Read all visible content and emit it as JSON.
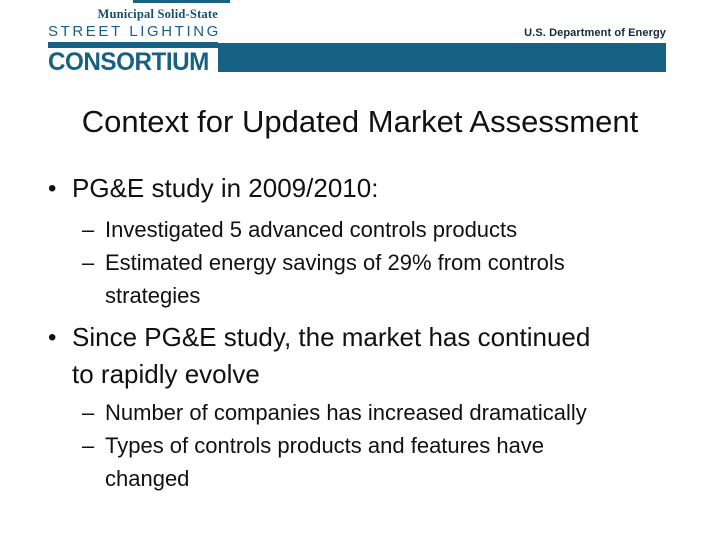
{
  "logo": {
    "line1": "Municipal Solid-State",
    "line2": "STREET LIGHTING",
    "line3": "CONSORTIUM"
  },
  "header": {
    "agency": "U.S. Department of Energy"
  },
  "slide": {
    "title": "Context for Updated Market Assessment",
    "bullets": [
      {
        "level": 1,
        "text": "PG&E study in 2009/2010:"
      },
      {
        "level": 2,
        "text": "Investigated 5 advanced controls products"
      },
      {
        "level": 2,
        "text": "Estimated energy savings of 29% from controls strategies"
      },
      {
        "level": 1,
        "text": "Since PG&E study, the market has continued to rapidly evolve"
      },
      {
        "level": 2,
        "text": "Number of companies has increased dramatically"
      },
      {
        "level": 2,
        "text": "Types of controls products and features have changed"
      }
    ]
  },
  "markers": {
    "level1": "•",
    "level2": "–"
  },
  "colors": {
    "teal": "#176184",
    "navy": "#194f6e",
    "ink": "#111111",
    "doe": "#142a3c"
  }
}
